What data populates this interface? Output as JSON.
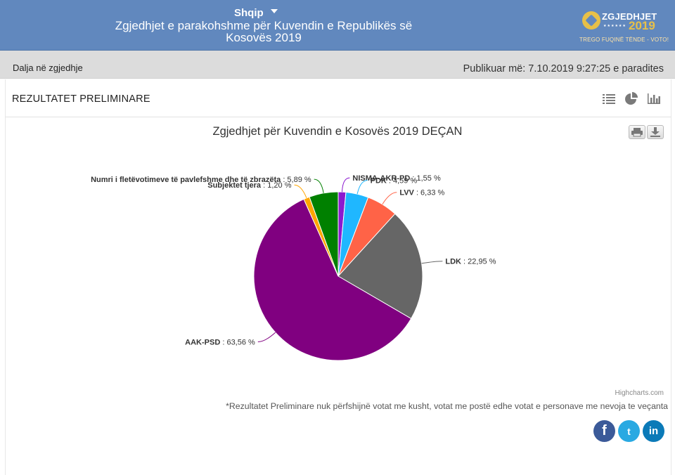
{
  "header": {
    "language": "Shqip",
    "title_line1": "Zgjedhjet e parakohshme për Kuvendin e Republikës së",
    "title_line2": "Kosovës 2019",
    "logo_word": "ZGJEDHJET",
    "logo_year": "2019",
    "logo_slogan": "TREGO FUQINË TËNDE - VOTO!"
  },
  "subbar": {
    "turnout_link": "Dalja në zgjedhje",
    "published": "Publikuar më: 7.10.2019 9:27:25 e paradites"
  },
  "panel": {
    "title": "REZULTATET PRELIMINARE",
    "view_icons": [
      "list-icon",
      "pie-chart-icon",
      "bar-chart-icon"
    ],
    "tool_icons": [
      "print-icon",
      "download-icon"
    ]
  },
  "chart_data": {
    "type": "pie",
    "title": "Zgjedhjet për Kuvendin e Kosovës 2019 DEÇAN",
    "slices": [
      {
        "name": "NISMA-AKR-PD",
        "value": 1.55,
        "label": "1,55 %",
        "color": "#8b19cf"
      },
      {
        "name": "PDK",
        "value": 4.59,
        "label": "4,59 %",
        "color": "#1fb7ff"
      },
      {
        "name": "LVV",
        "value": 6.33,
        "label": "6,33 %",
        "color": "#ff6347"
      },
      {
        "name": "LDK",
        "value": 22.95,
        "label": "22,95 %",
        "color": "#666666"
      },
      {
        "name": "AAK-PSD",
        "value": 63.56,
        "label": "63,56 %",
        "color": "#800080"
      },
      {
        "name": "Subjektet tjera",
        "value": 1.2,
        "label": "1,20 %",
        "color": "#ffa500"
      },
      {
        "name": "Numri i fletëvotimeve të pavlefshme dhe të zbrazëta",
        "value": 5.89,
        "label": "5,89 %",
        "color": "#008000"
      }
    ]
  },
  "credits": "Highcharts.com",
  "footnote": "*Rezultatet Preliminare nuk përfshijnë votat me kusht, votat me postë edhe votat e personave me nevoja te veçanta",
  "social": {
    "facebook": "f",
    "twitter": "t",
    "linkedin": "in"
  }
}
